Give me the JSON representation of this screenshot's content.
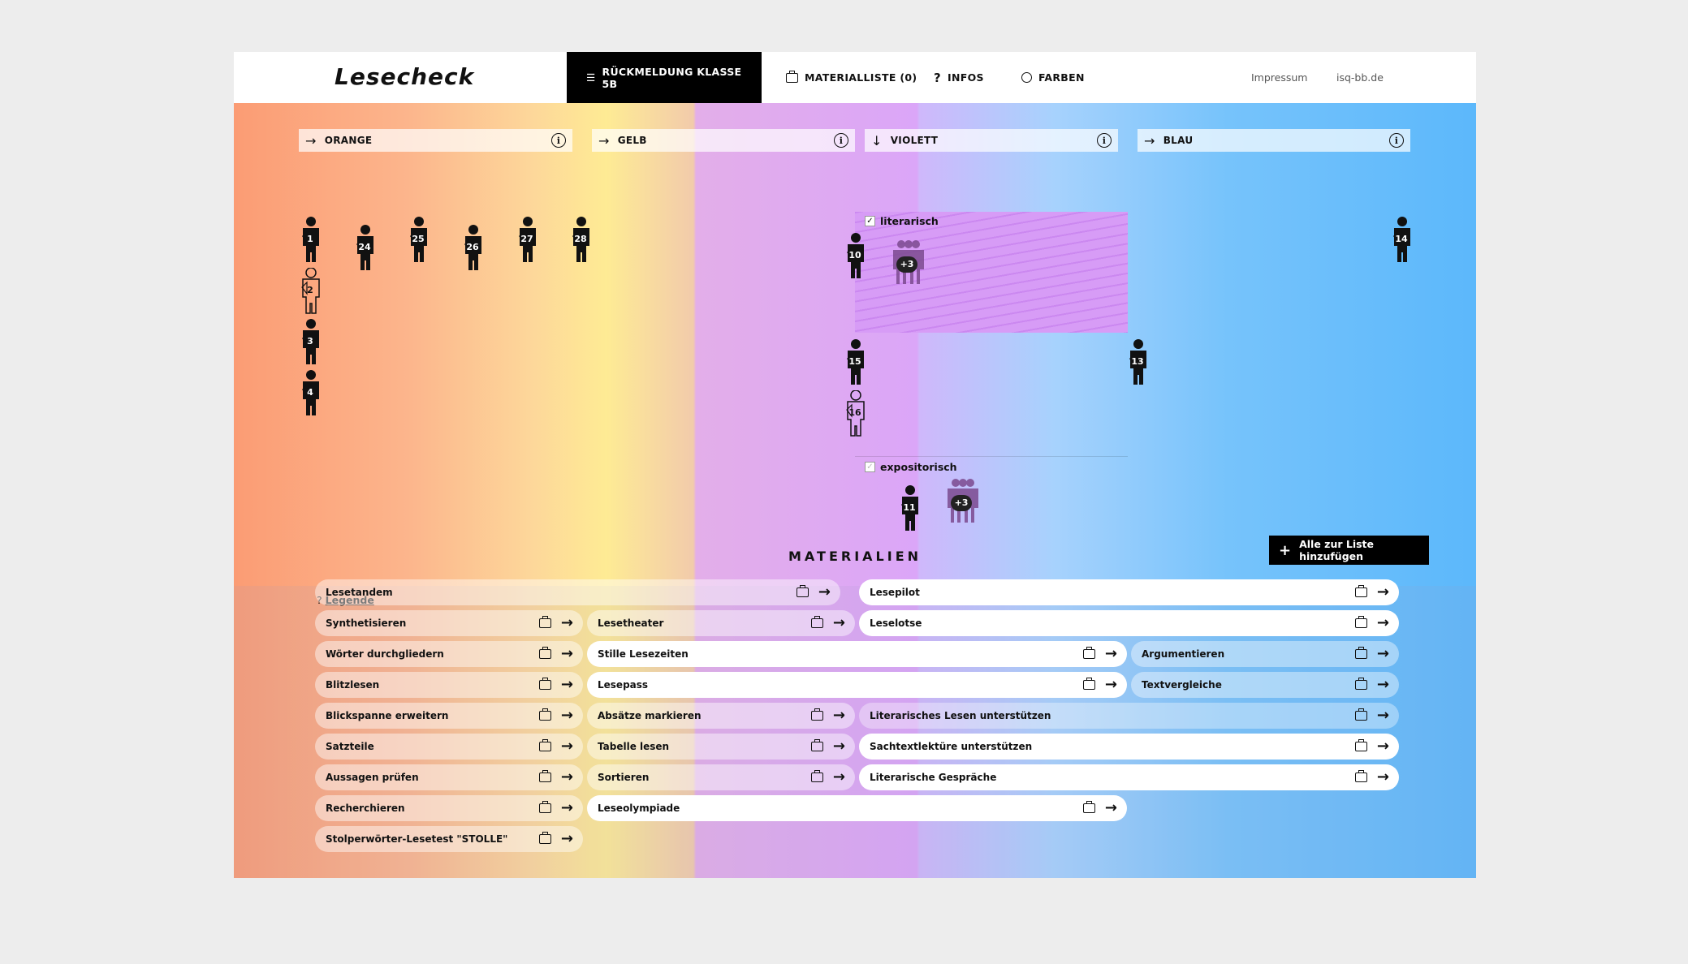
{
  "app": {
    "logo": "Lesecheck"
  },
  "nav": {
    "feedback": "RÜCKMELDUNG KLASSE 5B",
    "materials": "MATERIALLISTE (0)",
    "info": "INFOS",
    "colors": "FARBEN",
    "imprint": "Impressum",
    "site": "isq-bb.de"
  },
  "columns": [
    {
      "name": "ORANGE",
      "arrow": "→"
    },
    {
      "name": "GELB",
      "arrow": "→"
    },
    {
      "name": "VIOLETT",
      "arrow": "↓"
    },
    {
      "name": "BLAU",
      "arrow": "→"
    }
  ],
  "violet": {
    "literarisch": "literarisch",
    "expositorisch": "expositorisch"
  },
  "students": {
    "orange": [
      "1",
      "2",
      "3",
      "4",
      "24",
      "25",
      "26",
      "27",
      "28"
    ],
    "violett_literarisch": [
      "10",
      "+3",
      "15",
      "16"
    ],
    "violett_expositorisch": [
      "11",
      "+3"
    ],
    "blau": [
      "13",
      "14"
    ]
  },
  "legend": {
    "q": "?",
    "label": "Legende"
  },
  "materials_title": "MATERIALIEN",
  "add_all": "Alle zur Liste hinzufügen",
  "materials": {
    "lesetandem": "Lesetandem",
    "synthetisieren": "Synthetisieren",
    "woerter": "Wörter durchgliedern",
    "blitzlesen": "Blitzlesen",
    "blickspanne": "Blickspanne erweitern",
    "satzteile": "Satzteile",
    "aussagen": "Aussagen prüfen",
    "recherchieren": "Recherchieren",
    "stolle": "Stolperwörter-Lesetest \"STOLLE\"",
    "lesetheater": "Lesetheater",
    "stille": "Stille Lesezeiten",
    "lesepass": "Lesepass",
    "absaetze": "Absätze markieren",
    "tabelle": "Tabelle lesen",
    "sortieren": "Sortieren",
    "leseolympiade": "Leseolympiade",
    "lesepilot": "Lesepilot",
    "leselotse": "Leselotse",
    "literarisches": "Literarisches Lesen unterstützen",
    "sachtext": "Sachtextlektüre unterstützen",
    "gespraeche": "Literarische Gespräche",
    "argumentieren": "Argumentieren",
    "textvergleiche": "Textvergleiche"
  }
}
